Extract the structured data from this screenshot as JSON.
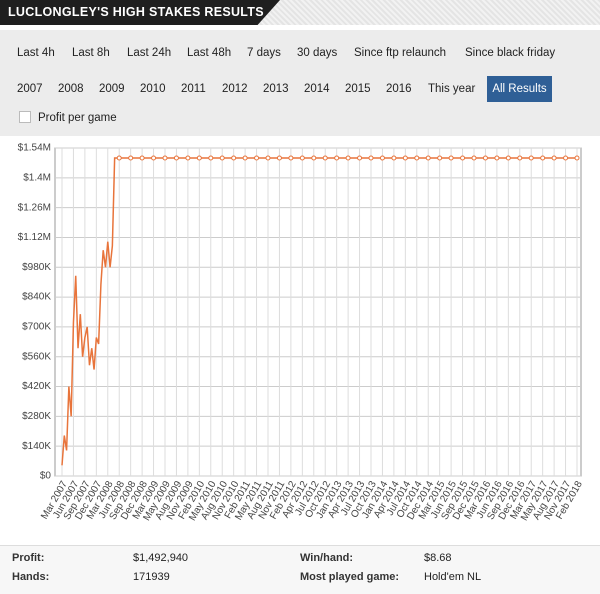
{
  "header": {
    "title": "LUCLONGLEY'S HIGH STAKES RESULTS"
  },
  "filters": {
    "row1": [
      "Last 4h",
      "Last 8h",
      "Last 24h",
      "Last 48h",
      "7 days",
      "30 days",
      "Since ftp relaunch",
      "Since black friday"
    ],
    "row2": [
      "2007",
      "2008",
      "2009",
      "2010",
      "2011",
      "2012",
      "2013",
      "2014",
      "2015",
      "2016",
      "This year"
    ],
    "selected": "All Results",
    "checkbox": "Profit per game"
  },
  "chart_data": {
    "type": "line",
    "categories": [
      "Mar 2007",
      null,
      null,
      null,
      null,
      "Jun 2007",
      null,
      null,
      null,
      null,
      "Sep 2007",
      null,
      null,
      null,
      null,
      "Dec 2007",
      null,
      null,
      null,
      null,
      "Mar 2008",
      null,
      null,
      null,
      null,
      "Jun 2008",
      "Sep 2008",
      "Dec 2008",
      "Mar 2009",
      "May 2009",
      "Aug 2009",
      "Nov 2009",
      "Feb 2010",
      "May 2010",
      "Aug 2010",
      "Nov 2010",
      "Feb 2011",
      "May 2011",
      "Aug 2011",
      "Nov 2011",
      "Feb 2012",
      "Apr 2012",
      "Jul 2012",
      "Oct 2012",
      "Jan 2013",
      "Apr 2013",
      "Jul 2013",
      "Oct 2013",
      "Jan 2014",
      "Apr 2014",
      "Jul 2014",
      "Oct 2014",
      "Dec 2014",
      "Mar 2015",
      "Jun 2015",
      "Sep 2015",
      "Dec 2015",
      "Mar 2016",
      "Jun 2016",
      "Sep 2016",
      "Dec 2016",
      "Mar 2017",
      "May 2017",
      "Aug 2017",
      "Nov 2017",
      "Feb 2018"
    ],
    "series": [
      {
        "name": "Profit",
        "color": "#e8743b",
        "values": [
          50000,
          190000,
          120000,
          420000,
          280000,
          720000,
          940000,
          600000,
          760000,
          560000,
          650000,
          700000,
          520000,
          600000,
          500000,
          650000,
          620000,
          900000,
          1060000,
          980000,
          1100000,
          980000,
          1080000,
          1492940,
          1492940,
          1492940,
          1492940,
          1492940,
          1492940,
          1492940,
          1492940,
          1492940,
          1492940,
          1492940,
          1492940,
          1492940,
          1492940,
          1492940,
          1492940,
          1492940,
          1492940,
          1492940,
          1492940,
          1492940,
          1492940,
          1492940,
          1492940,
          1492940,
          1492940,
          1492940,
          1492940,
          1492940,
          1492940,
          1492940,
          1492940,
          1492940,
          1492940,
          1492940,
          1492940,
          1492940,
          1492940,
          1492940,
          1492940,
          1492940,
          1492940,
          1492940
        ]
      }
    ],
    "ylim": [
      0,
      1540000
    ],
    "yticks": [
      {
        "value": 0,
        "label": "$0"
      },
      {
        "value": 140000,
        "label": "$140K"
      },
      {
        "value": 280000,
        "label": "$280K"
      },
      {
        "value": 420000,
        "label": "$420K"
      },
      {
        "value": 560000,
        "label": "$560K"
      },
      {
        "value": 700000,
        "label": "$700K"
      },
      {
        "value": 840000,
        "label": "$840K"
      },
      {
        "value": 980000,
        "label": "$980K"
      },
      {
        "value": 1120000,
        "label": "$1.12M"
      },
      {
        "value": 1260000,
        "label": "$1.26M"
      },
      {
        "value": 1400000,
        "label": "$1.4M"
      },
      {
        "value": 1540000,
        "label": "$1.54M"
      }
    ],
    "grid": true
  },
  "stats": [
    {
      "label": "Profit:",
      "value": "$1,492,940"
    },
    {
      "label": "Win/hand:",
      "value": "$8.68"
    },
    {
      "label": "Hands:",
      "value": 171939
    },
    {
      "label": "Most played game:",
      "value": "Hold'em NL"
    }
  ]
}
